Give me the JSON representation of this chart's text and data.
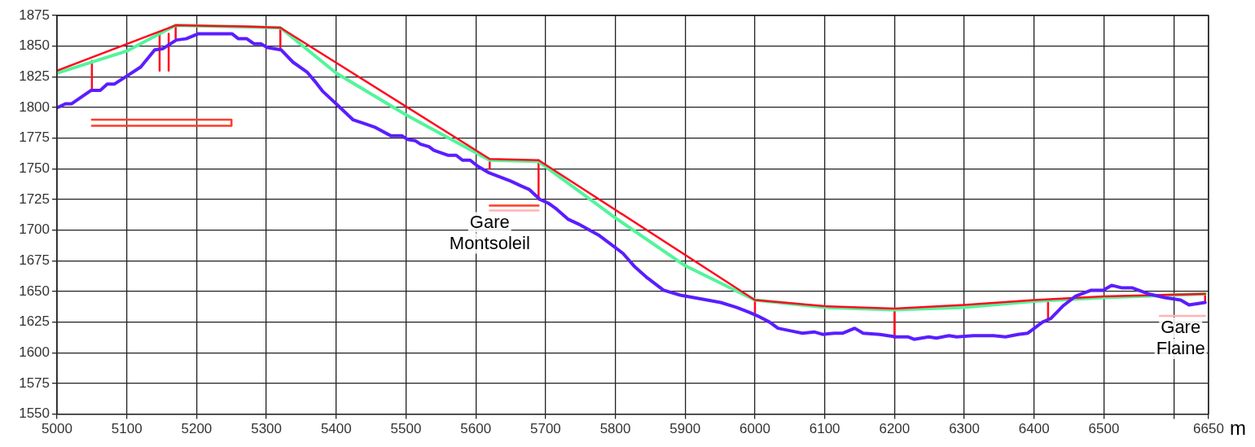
{
  "chart_data": {
    "type": "line",
    "xlabel": "m",
    "xlim": [
      5000,
      6650
    ],
    "ylim": [
      1550,
      1875
    ],
    "xticks": [
      5000,
      5100,
      5200,
      5300,
      5400,
      5500,
      5600,
      5700,
      5800,
      5900,
      6000,
      6100,
      6200,
      6300,
      6400,
      6500,
      {
        "value": 6600,
        "label": null
      },
      6650
    ],
    "yticks": [
      1550,
      1575,
      1600,
      1625,
      1650,
      1675,
      1700,
      1725,
      1750,
      1775,
      1800,
      1825,
      1850,
      1875
    ],
    "grid": true,
    "legend": false,
    "marker": "none",
    "line_style": "solid",
    "annotations": [
      {
        "text": "Gare Montsoleil",
        "x": 5620,
        "y": 1716
      },
      {
        "text": "Gare Flaine",
        "x": 6610,
        "y": 1630
      }
    ],
    "series": [
      {
        "color": "#5a1eff",
        "x": [
          5001,
          5012,
          5021,
          5049,
          5062,
          5072,
          5082,
          5101,
          5120,
          5140,
          5152,
          5171,
          5185,
          5202,
          5251,
          5260,
          5272,
          5282,
          5292,
          5301,
          5321,
          5338,
          5358,
          5370,
          5381,
          5400,
          5424,
          5440,
          5455,
          5478,
          5494,
          5502,
          5513,
          5521,
          5533,
          5540,
          5560,
          5572,
          5581,
          5592,
          5603,
          5618,
          5650,
          5665,
          5677,
          5692,
          5704,
          5714,
          5732,
          5747,
          5776,
          5811,
          5828,
          5846,
          5869,
          5893,
          5922,
          5951,
          5974,
          5992,
          6004,
          6021,
          6033,
          6050,
          6068,
          6085,
          6097,
          6114,
          6126,
          6143,
          6155,
          6179,
          6202,
          6219,
          6228,
          6249,
          6260,
          6278,
          6289,
          6313,
          6342,
          6359,
          6377,
          6391,
          6412,
          6424,
          6441,
          6459,
          6482,
          6499,
          6511,
          6525,
          6540,
          6564,
          6587,
          6610,
          6622,
          6645
        ],
        "values": [
          1800,
          1803,
          1803,
          1814,
          1814,
          1819,
          1819,
          1826,
          1833,
          1847,
          1848,
          1855,
          1856,
          1860,
          1860,
          1856,
          1856,
          1852,
          1852,
          1849,
          1847,
          1837,
          1829,
          1821,
          1813,
          1803,
          1790,
          1787,
          1784,
          1777,
          1777,
          1774,
          1773,
          1770,
          1768,
          1765,
          1761,
          1761,
          1757,
          1757,
          1752,
          1747,
          1740,
          1736,
          1733,
          1725,
          1722,
          1718,
          1709,
          1705,
          1696,
          1681,
          1670,
          1661,
          1651,
          1647,
          1644,
          1641,
          1637,
          1633,
          1630,
          1625,
          1620,
          1618,
          1616,
          1617,
          1615,
          1616,
          1616,
          1620,
          1616,
          1615,
          1613,
          1613,
          1611,
          1613,
          1612,
          1614,
          1613,
          1614,
          1614,
          1613,
          1615,
          1616,
          1625,
          1628,
          1638,
          1646,
          1651,
          1651,
          1655,
          1653,
          1653,
          1648,
          1645,
          1643,
          1639,
          1641
        ]
      },
      {
        "color": "#ff0a1e",
        "x": [
          5000,
          5170,
          5270,
          5320,
          5620,
          5690,
          6000,
          6100,
          6200,
          6300,
          6400,
          6500,
          6645
        ],
        "values": [
          1830,
          1867,
          1866,
          1865,
          1758,
          1757,
          1643,
          1638,
          1636,
          1639,
          1643,
          1646,
          1648
        ]
      },
      {
        "color": "#52f59a",
        "x": [
          5000,
          5100,
          5170,
          5320,
          5400,
          5500,
          5620,
          5690,
          5800,
          5900,
          6000,
          6100,
          6200,
          6300,
          6400,
          6500,
          6645
        ],
        "values": [
          1828,
          1846,
          1867,
          1865,
          1828,
          1794,
          1757,
          1756,
          1710,
          1671,
          1643,
          1637,
          1635,
          1637,
          1642,
          1645,
          1648
        ]
      },
      {
        "color": "#ff0a1e",
        "x": [
          5050,
          5050,
          null,
          5170,
          5170,
          null,
          5320,
          5320,
          null,
          5620,
          5620,
          null,
          5690,
          5690,
          null,
          6000,
          6000,
          null,
          6200,
          6200,
          null,
          6420,
          6420,
          null,
          6645,
          6645
        ],
        "values": [
          1838,
          1814,
          null,
          1866,
          1856,
          null,
          1865,
          1847,
          null,
          1757,
          1750,
          null,
          1757,
          1725,
          null,
          1643,
          1630,
          null,
          1636,
          1612,
          null,
          1643,
          1628,
          null,
          1648,
          1642
        ]
      },
      {
        "color": "#ff3c28",
        "x": [
          5050,
          5250,
          5250,
          5050
        ],
        "values": [
          1790,
          1790,
          1785,
          1785
        ]
      },
      {
        "color": "#ff0a1e",
        "x": [
          5147,
          5147,
          null,
          5160,
          5160
        ],
        "values": [
          1860,
          1830,
          null,
          1860,
          1830
        ]
      },
      {
        "color": "#ff3c28",
        "x": [
          5620,
          5690
        ],
        "values": [
          1720,
          1720
        ]
      },
      {
        "color": "#ffb4b4",
        "x": [
          5620,
          5690,
          null,
          6580,
          6645
        ],
        "values": [
          1716,
          1716,
          null,
          1630,
          1630
        ]
      }
    ]
  }
}
